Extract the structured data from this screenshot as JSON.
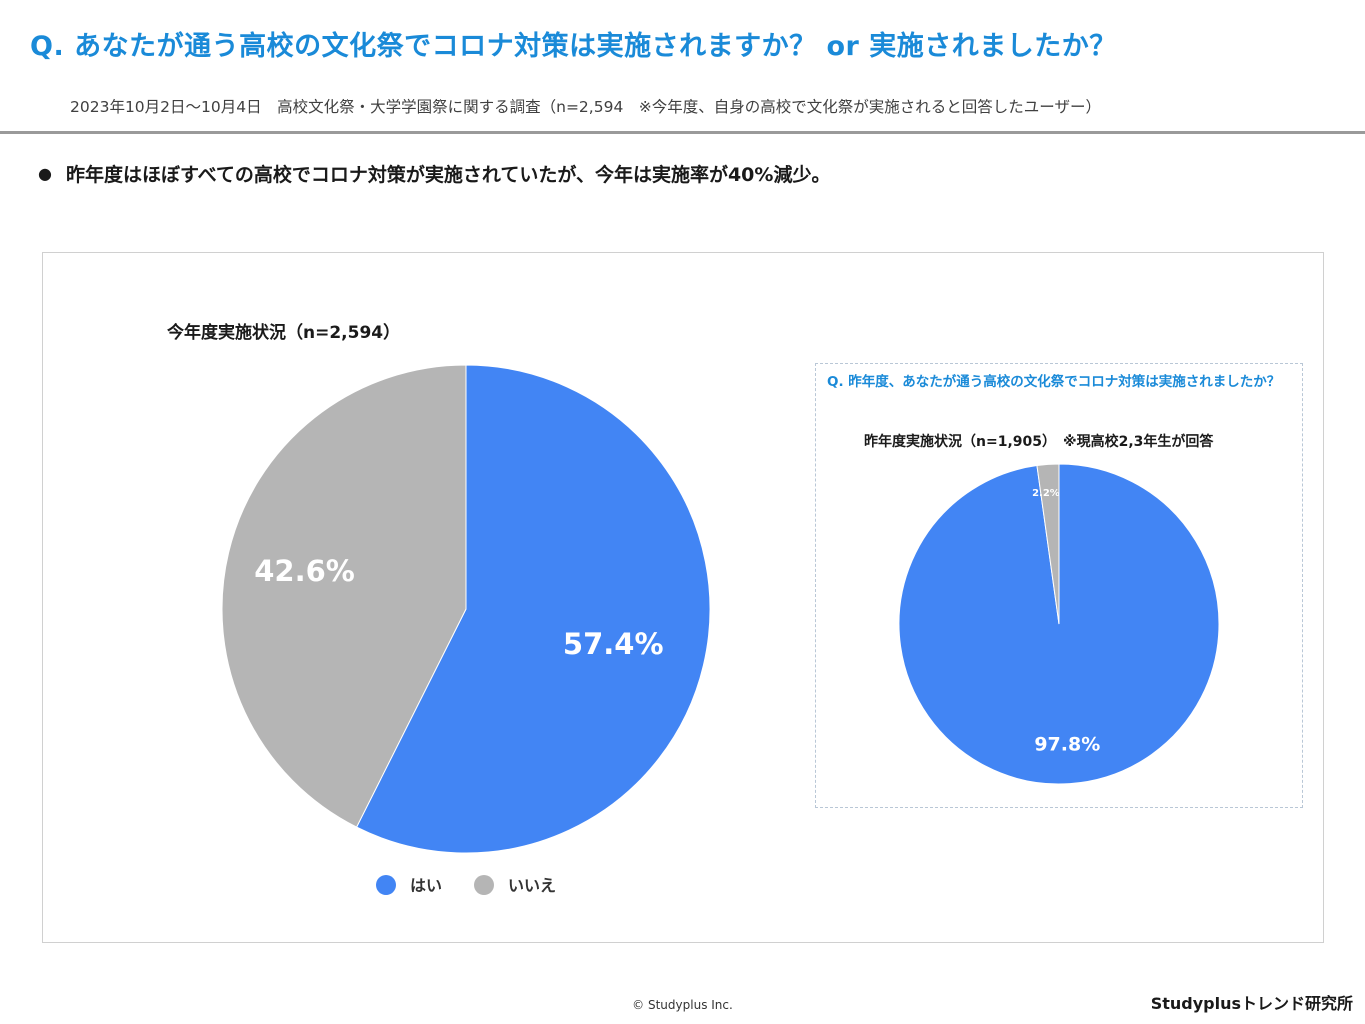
{
  "header": {
    "title": "Q. あなたが通う高校の文化祭でコロナ対策は実施されますか？ or 実施されましたか？",
    "subtitle": "2023年10月2日～10月4日　高校文化祭・大学学園祭に関する調査（n=2,594　※今年度、自身の高校で文化祭が実施されると回答したユーザー）"
  },
  "bullet": {
    "symbol": "●",
    "text": "昨年度はほぼすべての高校でコロナ対策が実施されていたが、今年は実施率が40%減少。"
  },
  "colors": {
    "title": "#1a8ad8",
    "yes": "#4285f4",
    "no": "#b5b5b5",
    "inset_question": "#1a8ad8"
  },
  "chart_data": [
    {
      "type": "pie",
      "title": "今年度実施状況（n=2,594）",
      "categories": [
        "はい",
        "いいえ"
      ],
      "values": [
        57.4,
        42.6
      ],
      "data_labels": [
        "57.4%",
        "42.6%"
      ],
      "legend": [
        "はい",
        "いいえ"
      ],
      "legend_position": "bottom"
    },
    {
      "type": "pie",
      "question": "Q. 昨年度、あなたが通う高校の文化祭でコロナ対策は実施されましたか？",
      "title": "昨年度実施状況（n=1,905）　※現高校2,3年生が回答",
      "categories": [
        "はい",
        "いいえ"
      ],
      "values": [
        97.8,
        2.2
      ],
      "data_labels": [
        "97.8%",
        "2.2%"
      ]
    }
  ],
  "footer": {
    "copyright": "© Studyplus Inc.",
    "brand": "Studyplusトレンド研究所"
  }
}
